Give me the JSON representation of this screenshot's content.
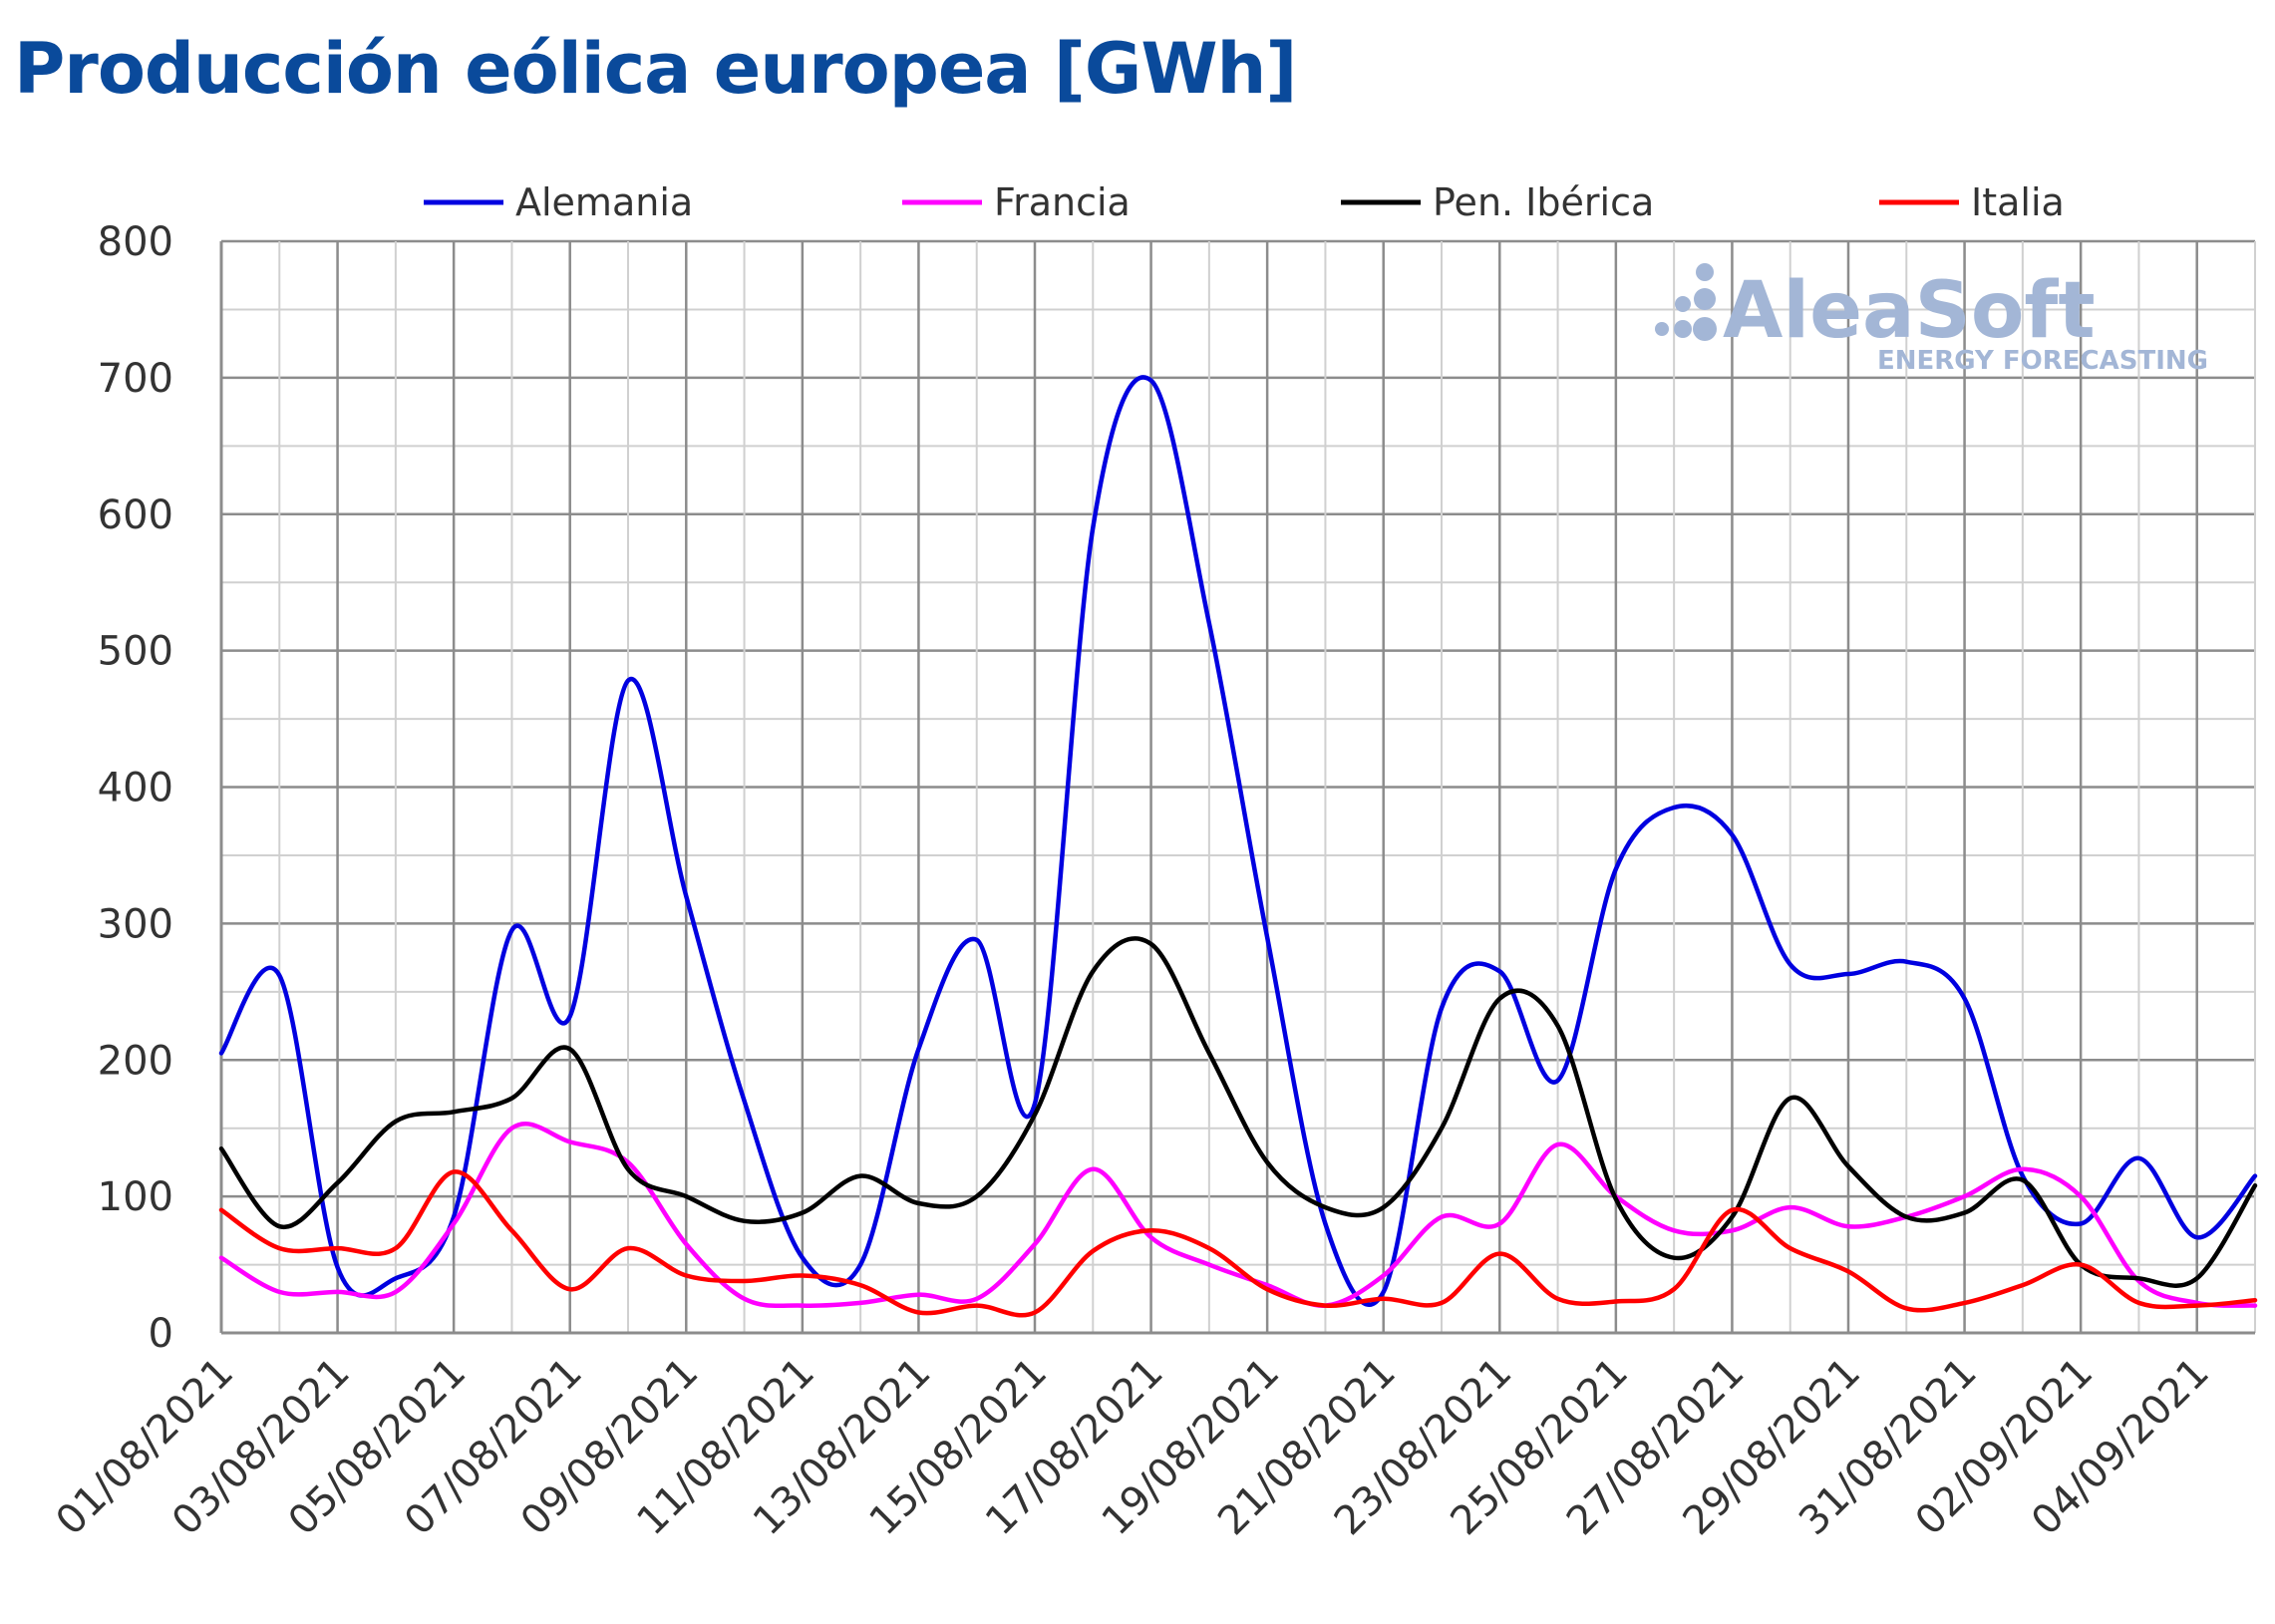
{
  "title": "Producción eólica europea [GWh]",
  "watermark": {
    "brand": "AleaSoft",
    "tagline": "ENERGY FORECASTING"
  },
  "chart_data": {
    "type": "line",
    "title": "Producción eólica europea [GWh]",
    "xlabel": "",
    "ylabel": "",
    "ylim": [
      0,
      800
    ],
    "yticks": [
      "0",
      "100",
      "200",
      "300",
      "400",
      "500",
      "600",
      "700",
      "800"
    ],
    "grid": true,
    "legend_position": "top",
    "x": [
      "01/08/2021",
      "02/08/2021",
      "03/08/2021",
      "04/08/2021",
      "05/08/2021",
      "06/08/2021",
      "07/08/2021",
      "08/08/2021",
      "09/08/2021",
      "10/08/2021",
      "11/08/2021",
      "12/08/2021",
      "13/08/2021",
      "14/08/2021",
      "15/08/2021",
      "16/08/2021",
      "17/08/2021",
      "18/08/2021",
      "19/08/2021",
      "20/08/2021",
      "21/08/2021",
      "22/08/2021",
      "23/08/2021",
      "24/08/2021",
      "25/08/2021",
      "26/08/2021",
      "27/08/2021",
      "28/08/2021",
      "29/08/2021",
      "30/08/2021",
      "31/08/2021",
      "01/09/2021",
      "02/09/2021",
      "03/09/2021",
      "04/09/2021",
      "05/09/2021"
    ],
    "xtick_labels": [
      "01/08/2021",
      "03/08/2021",
      "05/08/2021",
      "07/08/2021",
      "09/08/2021",
      "11/08/2021",
      "13/08/2021",
      "15/08/2021",
      "17/08/2021",
      "19/08/2021",
      "21/08/2021",
      "23/08/2021",
      "25/08/2021",
      "27/08/2021",
      "29/08/2021",
      "31/08/2021",
      "02/09/2021",
      "04/09/2021"
    ],
    "series": [
      {
        "name": "Alemania",
        "color": "#0000e0",
        "values": [
          205,
          262,
          48,
          40,
          85,
          295,
          232,
          478,
          320,
          170,
          55,
          50,
          208,
          288,
          168,
          590,
          698,
          520,
          290,
          80,
          30,
          238,
          265,
          185,
          340,
          385,
          365,
          270,
          263,
          272,
          245,
          115,
          80,
          128,
          70,
          115
        ]
      },
      {
        "name": "Francia",
        "color": "#ff00ff",
        "values": [
          55,
          30,
          30,
          30,
          80,
          150,
          140,
          125,
          65,
          25,
          20,
          22,
          28,
          25,
          65,
          120,
          70,
          50,
          35,
          20,
          42,
          85,
          80,
          138,
          100,
          75,
          75,
          92,
          78,
          85,
          100,
          120,
          100,
          38,
          22,
          20
        ]
      },
      {
        "name": "Pen. Ibérica",
        "color": "#000000",
        "values": [
          135,
          78,
          110,
          155,
          162,
          172,
          208,
          120,
          100,
          82,
          88,
          115,
          95,
          100,
          160,
          265,
          285,
          205,
          125,
          92,
          92,
          150,
          245,
          225,
          98,
          55,
          85,
          172,
          122,
          85,
          88,
          112,
          50,
          40,
          40,
          108
        ]
      },
      {
        "name": "Italia",
        "color": "#ff0000",
        "values": [
          90,
          62,
          62,
          62,
          118,
          75,
          32,
          62,
          42,
          38,
          42,
          35,
          15,
          20,
          15,
          60,
          75,
          62,
          32,
          20,
          25,
          22,
          58,
          25,
          23,
          32,
          90,
          62,
          45,
          18,
          22,
          35,
          50,
          22,
          20,
          24
        ]
      }
    ]
  }
}
